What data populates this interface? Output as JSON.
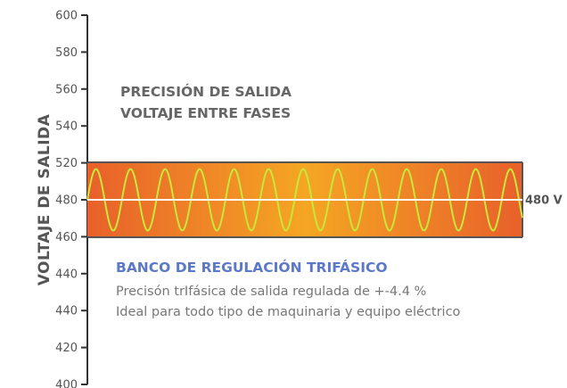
{
  "chart_data": {
    "type": "line",
    "ylabel": "VOLTAJE DE SALIDA",
    "y_ticks": [
      "600",
      "580",
      "560",
      "540",
      "520",
      "480",
      "460",
      "440",
      "440",
      "420",
      "400"
    ],
    "annotation": {
      "line1": "PRECISIÓN DE SALIDA",
      "line2": "VOLTAJE ENTRE FASES"
    },
    "band": {
      "top": 520,
      "bottom": 460
    },
    "reference": {
      "value": 480,
      "label": "480 V"
    },
    "sine": {
      "cycles": 12.6,
      "amplitude_ratio": 0.82
    },
    "info": {
      "title": "BANCO DE REGULACIÓN TRIFÁSICO",
      "line1": "Precisón trIfásica de salida regulada de +-4.4 %",
      "line2": "Ideal para todo tipo de maquinaria y equipo eléctrico"
    },
    "colors": {
      "axis": "#333333",
      "band_edge": "#e8602a",
      "band_center": "#f5a623",
      "band_border": "#555555",
      "sine": "#c6e83a",
      "reference_line": "#ffffff",
      "info_title": "#5b78c9"
    }
  }
}
